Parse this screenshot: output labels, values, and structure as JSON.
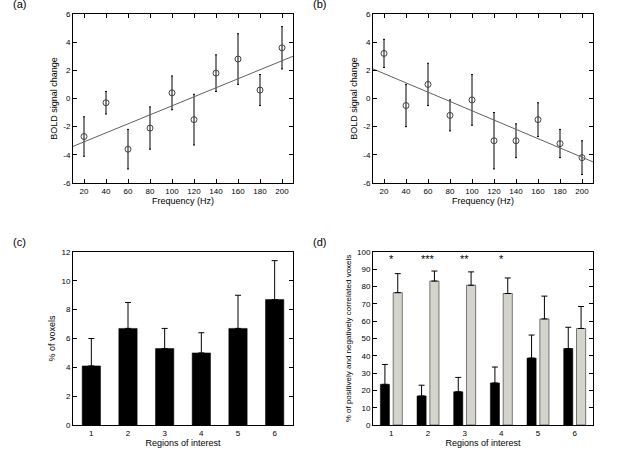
{
  "chart_data": [
    {
      "type": "scatter",
      "title": "(a)",
      "xlabel": "Frequency (Hz)",
      "ylabel": "BOLD signal change",
      "xlim": [
        10,
        210
      ],
      "xticks": [
        20,
        40,
        60,
        80,
        100,
        120,
        140,
        160,
        180,
        200
      ],
      "ylim": [
        -6,
        6
      ],
      "yticks": [
        -6,
        -4,
        -2,
        0,
        2,
        4,
        6
      ],
      "grid": false,
      "series": [
        {
          "type": "scatter",
          "marker": "circle-open",
          "color": "#404040",
          "x": [
            20,
            40,
            60,
            80,
            100,
            120,
            140,
            160,
            180,
            200
          ],
          "values": [
            -2.7,
            -0.3,
            -3.6,
            -2.1,
            0.4,
            -1.5,
            1.8,
            2.8,
            0.6,
            3.6
          ],
          "error": [
            1.4,
            0.8,
            1.4,
            1.5,
            1.2,
            1.8,
            1.3,
            1.8,
            1.1,
            1.5
          ]
        },
        {
          "type": "line",
          "color": "#606060",
          "line_style": "solid",
          "x": [
            10,
            210
          ],
          "values": [
            -3.4,
            3.0
          ]
        }
      ]
    },
    {
      "type": "scatter",
      "title": "(b)",
      "xlabel": "Frequency (Hz)",
      "ylabel": "BOLD signal change",
      "xlim": [
        10,
        210
      ],
      "xticks": [
        20,
        40,
        60,
        80,
        100,
        120,
        140,
        160,
        180,
        200
      ],
      "ylim": [
        -6,
        6
      ],
      "yticks": [
        -6,
        -4,
        -2,
        0,
        2,
        4,
        6
      ],
      "grid": false,
      "series": [
        {
          "type": "scatter",
          "marker": "circle-open",
          "color": "#404040",
          "x": [
            20,
            40,
            60,
            80,
            100,
            120,
            140,
            160,
            180,
            200
          ],
          "values": [
            3.2,
            -0.5,
            1.0,
            -1.2,
            -0.1,
            -3.0,
            -3.0,
            -1.5,
            -3.2,
            -4.2
          ],
          "error": [
            1.0,
            1.5,
            1.5,
            1.1,
            1.8,
            2.0,
            1.2,
            1.2,
            1.0,
            1.2
          ]
        },
        {
          "type": "line",
          "color": "#606060",
          "line_style": "solid",
          "x": [
            10,
            210
          ],
          "values": [
            2.1,
            -4.5
          ]
        }
      ]
    },
    {
      "type": "bar",
      "title": "(c)",
      "xlabel": "Regions of interest",
      "ylabel": "% of voxels",
      "categories": [
        "1",
        "2",
        "3",
        "4",
        "5",
        "6"
      ],
      "ylim": [
        0,
        12
      ],
      "yticks": [
        0,
        2,
        4,
        6,
        8,
        10,
        12
      ],
      "grid": false,
      "series": [
        {
          "color": "#000000",
          "values": [
            4.1,
            6.7,
            5.3,
            5.0,
            6.7,
            8.7
          ],
          "error_plus": [
            1.9,
            1.8,
            1.4,
            1.4,
            2.3,
            2.7
          ]
        }
      ]
    },
    {
      "type": "bar",
      "title": "(d)",
      "xlabel": "Regions of interest",
      "ylabel": "% of positively and negatively correlated voxels",
      "categories": [
        "1",
        "2",
        "3",
        "4",
        "5",
        "6"
      ],
      "ylim": [
        0,
        100
      ],
      "yticks": [
        0,
        10,
        20,
        30,
        40,
        50,
        60,
        70,
        80,
        90,
        100
      ],
      "grid": false,
      "series": [
        {
          "color": "#000000",
          "values": [
            23.5,
            16.8,
            19.2,
            24.3,
            38.7,
            44.2
          ],
          "error_plus": [
            11.5,
            6.2,
            8.3,
            9.2,
            13.3,
            12.3
          ]
        },
        {
          "color": "#d4d4cc",
          "values": [
            76.5,
            83.2,
            80.8,
            76.0,
            61.3,
            55.8
          ],
          "error_plus": [
            11.0,
            5.8,
            7.7,
            9.0,
            13.2,
            12.7
          ]
        }
      ],
      "annotations": [
        {
          "category": "1",
          "y": 96,
          "text": "*"
        },
        {
          "category": "2",
          "y": 96,
          "text": "***"
        },
        {
          "category": "3",
          "y": 96,
          "text": "**"
        },
        {
          "category": "4",
          "y": 96,
          "text": "*"
        }
      ]
    }
  ]
}
